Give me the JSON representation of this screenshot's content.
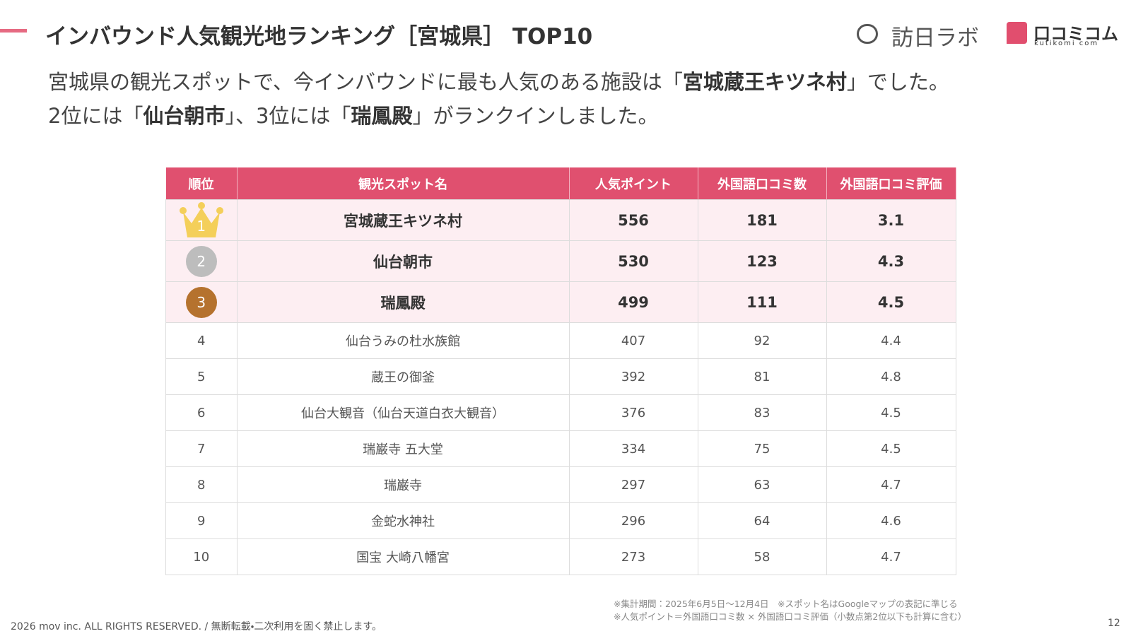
{
  "header": {
    "title": "インバウンド人気観光地ランキング［宮城県］ TOP10",
    "logo_main": "訪日ラボ",
    "logo_sub": "口コミコム",
    "logo_sub_en": "kutikomi com"
  },
  "intro": [
    [
      {
        "text": "宮城県の観光スポットで、今インバウンドに最も人気のある施設は「"
      },
      {
        "text": "宮城蔵王キツネ村",
        "bold": true
      },
      {
        "text": "」でした。"
      }
    ],
    [
      {
        "text": "2位には「"
      },
      {
        "text": "仙台朝市",
        "bold": true
      },
      {
        "text": "」、3位には「"
      },
      {
        "text": "瑞鳳殿",
        "bold": true
      },
      {
        "text": "」がランクインしました。"
      }
    ]
  ],
  "table": {
    "columns": [
      "順位",
      "観光スポット名",
      "人気ポイント",
      "外国語口コミ数",
      "外国語口コミ評価"
    ],
    "rows": [
      [
        1,
        "宮城蔵王キツネ村",
        556,
        181,
        3.1
      ],
      [
        2,
        "仙台朝市",
        530,
        123,
        4.3
      ],
      [
        3,
        "瑞鳳殿",
        499,
        111,
        4.5
      ],
      [
        4,
        "仙台うみの杜水族館",
        407,
        92,
        4.4
      ],
      [
        5,
        "蔵王の御釜",
        392,
        81,
        4.8
      ],
      [
        6,
        "仙台大観音（仙台天道白衣大観音）",
        376,
        83,
        4.5
      ],
      [
        7,
        "瑞巌寺 五大堂",
        334,
        75,
        4.5
      ],
      [
        8,
        "瑞巌寺",
        297,
        63,
        4.7
      ],
      [
        9,
        "金蛇水神社",
        296,
        64,
        4.6
      ],
      [
        10,
        "国宝 大崎八幡宮",
        273,
        58,
        4.7
      ]
    ]
  },
  "notes": [
    "※集計期間：2025年6月5日〜12月4日　※スポット名はGoogleマップの表記に準じる",
    "※人気ポイント＝外国語口コミ数 × 外国語口コミ評価（小数点第2位以下も計算に含む）"
  ],
  "footer": {
    "copyright": "2026 mov inc. ALL RIGHTS RESERVED. / 無断転載・二次利用を固く禁止します。",
    "page": 12
  }
}
